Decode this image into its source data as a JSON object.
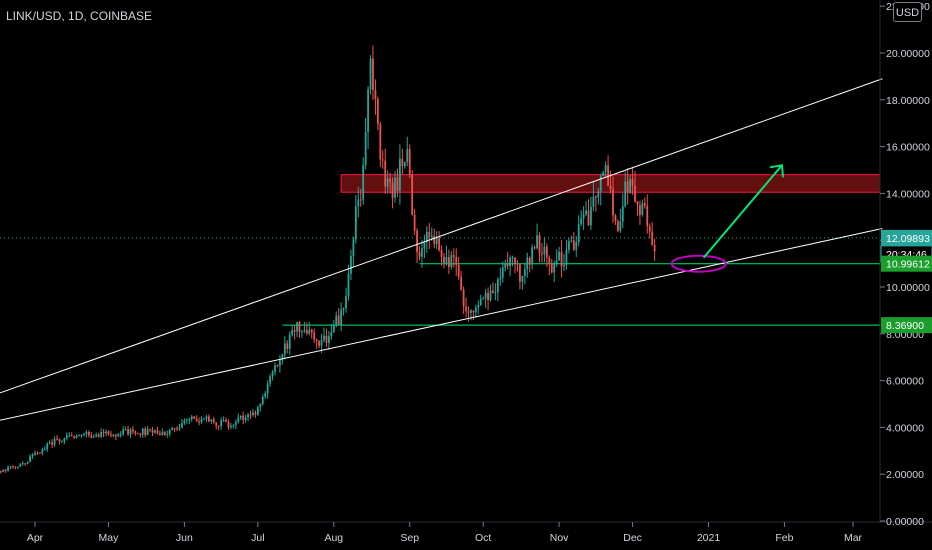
{
  "header": {
    "symbol": "LINK/USD, 1D, COINBASE",
    "currency": "USD"
  },
  "colors": {
    "up": "#26a69a",
    "down": "#ef5350",
    "trendline": "#ffffff",
    "support_line": "#00e676",
    "resistance_zone_fill": "#b71c1c",
    "resistance_zone_border": "#ff1744",
    "projection_arrow": "#00e676",
    "highlight_ellipse": "#c000c0",
    "current_price_line": "#26a69a"
  },
  "chart_data": {
    "type": "candlestick",
    "x_axis": {
      "labels": [
        "Apr",
        "May",
        "Jun",
        "Jul",
        "Aug",
        "Sep",
        "Oct",
        "Nov",
        "Dec",
        "2021",
        "Feb",
        "Mar"
      ],
      "dates": [
        "2020-04-01",
        "2020-05-01",
        "2020-06-01",
        "2020-07-01",
        "2020-08-01",
        "2020-09-01",
        "2020-10-01",
        "2020-11-01",
        "2020-12-01",
        "2021-01-01",
        "2021-02-01",
        "2021-03-01"
      ]
    },
    "y_axis": {
      "ticks": [
        "0.00000",
        "2.00000",
        "4.00000",
        "6.00000",
        "8.00000",
        "10.00000",
        "12.00000",
        "14.00000",
        "16.00000",
        "18.00000",
        "20.00000",
        "22.00000"
      ],
      "tick_values": [
        0,
        2,
        4,
        6,
        8,
        10,
        12,
        14,
        16,
        18,
        20,
        22
      ],
      "range": [
        0,
        22
      ]
    },
    "series_anchors": {
      "date": [
        "2020-03-13",
        "2020-03-25",
        "2020-04-10",
        "2020-04-25",
        "2020-05-10",
        "2020-05-25",
        "2020-06-05",
        "2020-06-20",
        "2020-07-01",
        "2020-07-08",
        "2020-07-14",
        "2020-07-18",
        "2020-07-25",
        "2020-08-01",
        "2020-08-06",
        "2020-08-10",
        "2020-08-13",
        "2020-08-16",
        "2020-08-20",
        "2020-08-25",
        "2020-08-31",
        "2020-09-04",
        "2020-09-08",
        "2020-09-14",
        "2020-09-20",
        "2020-09-23",
        "2020-09-30",
        "2020-10-06",
        "2020-10-11",
        "2020-10-17",
        "2020-10-22",
        "2020-10-28",
        "2020-11-04",
        "2020-11-09",
        "2020-11-15",
        "2020-11-20",
        "2020-11-25",
        "2020-11-28",
        "2020-12-03",
        "2020-12-07",
        "2020-12-10"
      ],
      "close": [
        2.1,
        2.3,
        3.5,
        3.7,
        3.8,
        3.8,
        4.4,
        4.1,
        4.8,
        6.6,
        7.7,
        8.4,
        7.5,
        8.2,
        9.5,
        13.2,
        14.8,
        19.4,
        15.3,
        14.1,
        15.8,
        11.4,
        12.6,
        11.2,
        10.9,
        9.1,
        9.3,
        9.9,
        11.1,
        10.4,
        12.1,
        10.9,
        11.3,
        12.4,
        13.4,
        14.9,
        12.3,
        14.6,
        13.8,
        12.7,
        11.9
      ]
    },
    "horizontal_levels": [
      {
        "price": 10.99612,
        "label": "10.99612",
        "style": "support"
      },
      {
        "price": 8.369,
        "label": "8.36900",
        "style": "support"
      }
    ],
    "resistance_zone": {
      "from": 14.05,
      "to": 14.8
    },
    "current_price": {
      "price": 12.09893,
      "label": "12.09893",
      "countdown": "20:34:46"
    },
    "trendlines": [
      {
        "from": [
          "2020-03-13",
          5.3
        ],
        "to": [
          "2021-03-13",
          18.9
        ]
      },
      {
        "from": [
          "2020-03-13",
          4.2
        ],
        "to": [
          "2021-03-13",
          12.5
        ]
      }
    ],
    "ellipse": {
      "center": [
        "2020-12-28",
        10.99612
      ]
    },
    "arrow": {
      "from": [
        "2020-12-30",
        11.25
      ],
      "to": [
        "2021-01-31",
        15.2
      ]
    }
  }
}
